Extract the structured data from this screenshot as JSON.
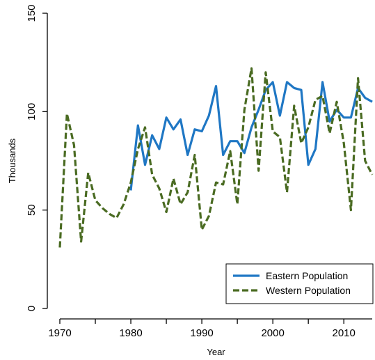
{
  "chart_data": {
    "type": "line",
    "xlabel": "Year",
    "ylabel": "Thousands",
    "xlim": [
      1970,
      2014
    ],
    "ylim": [
      0,
      150
    ],
    "x_ticks": [
      1970,
      1980,
      1990,
      2000,
      2010
    ],
    "x_tick_labels": [
      "1970",
      "1980",
      "1990",
      "2000",
      "2010"
    ],
    "x_minor_ticks": [
      1975,
      1985,
      1995,
      2005
    ],
    "y_ticks": [
      0,
      50,
      100,
      150
    ],
    "y_tick_labels": [
      "0",
      "50",
      "100",
      "150"
    ],
    "grid": false,
    "legend_position": "bottom-right",
    "series": [
      {
        "name": "Eastern Population",
        "color": "#1f77c4",
        "style": "solid",
        "x": [
          1980,
          1981,
          1982,
          1983,
          1984,
          1985,
          1986,
          1987,
          1988,
          1989,
          1990,
          1991,
          1992,
          1993,
          1994,
          1995,
          1996,
          1997,
          1998,
          1999,
          2000,
          2001,
          2002,
          2003,
          2004,
          2005,
          2006,
          2007,
          2008,
          2009,
          2010,
          2011,
          2012,
          2013,
          2014
        ],
        "values": [
          60,
          93,
          73,
          88,
          81,
          97,
          91,
          96,
          78,
          91,
          90,
          98,
          113,
          78,
          85,
          85,
          79,
          92,
          101,
          111,
          115,
          98,
          115,
          112,
          111,
          73,
          81,
          115,
          95,
          101,
          97,
          97,
          112,
          107,
          105
        ]
      },
      {
        "name": "Western Population",
        "color": "#4a6b22",
        "style": "dashed",
        "x": [
          1970,
          1971,
          1972,
          1973,
          1974,
          1975,
          1976,
          1977,
          1978,
          1979,
          1980,
          1981,
          1982,
          1983,
          1984,
          1985,
          1986,
          1987,
          1988,
          1989,
          1990,
          1991,
          1992,
          1993,
          1994,
          1995,
          1996,
          1997,
          1998,
          1999,
          2000,
          2001,
          2002,
          2003,
          2004,
          2005,
          2006,
          2007,
          2008,
          2009,
          2010,
          2011,
          2012,
          2013,
          2014
        ],
        "values": [
          31,
          99,
          83,
          34,
          69,
          55,
          51,
          48,
          46,
          53,
          64,
          81,
          92,
          68,
          61,
          49,
          66,
          53,
          59,
          78,
          40,
          47,
          64,
          63,
          80,
          53,
          101,
          122,
          70,
          120,
          90,
          87,
          59,
          103,
          84,
          92,
          106,
          108,
          89,
          105,
          84,
          50,
          117,
          75,
          68
        ]
      }
    ]
  }
}
